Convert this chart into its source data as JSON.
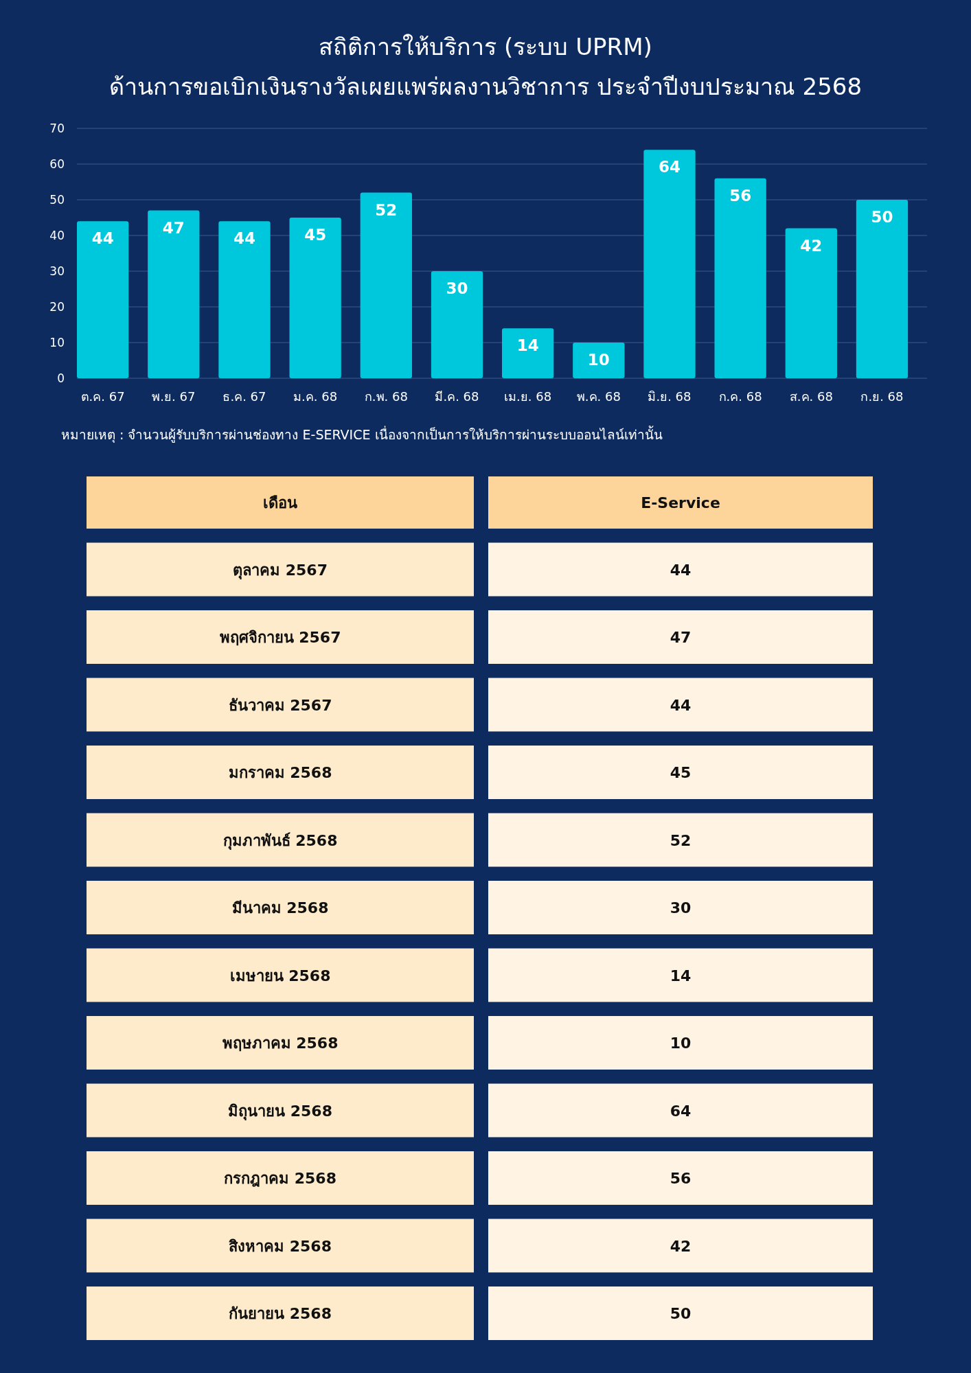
{
  "chart_data": [
    {
      "type": "bar",
      "title": "สถิติการให้บริการ (ระบบ UPRM)",
      "subtitle": "ด้านการขอเบิกเงินรางวัลเผยแพร่ผลงานวิชาการ ประจำปีงบประมาณ 2568",
      "categories": [
        "ต.ค. 67",
        "พ.ย. 67",
        "ธ.ค. 67",
        "ม.ค. 68",
        "ก.พ. 68",
        "มี.ค. 68",
        "เม.ย. 68",
        "พ.ค. 68",
        "มิ.ย. 68",
        "ก.ค. 68",
        "ส.ค. 68",
        "ก.ย. 68"
      ],
      "values": [
        44,
        47,
        44,
        45,
        52,
        30,
        14,
        10,
        64,
        56,
        42,
        50
      ],
      "color": "#00c8dc",
      "ylim": [
        0,
        70
      ],
      "yticks": [
        0,
        10,
        20,
        30,
        40,
        50,
        60,
        70
      ],
      "grid": "y",
      "data_labels": true,
      "annotations": [
        "หมายเหตุ : จำนวนผู้รับบริการผ่านช่องทาง E-SERVICE  เนื่องจากเป็นการให้บริการผ่านระบบออนไลน์เท่านั้น"
      ]
    },
    {
      "type": "other",
      "xlabel": "เดือน",
      "ylabel": "E-Service",
      "categories": [
        "ตุลาคม 2567",
        "พฤศจิกายน 2567",
        "ธันวาคม 2567",
        "มกราคม 2568",
        "กุมภาพันธ์ 2568",
        "มีนาคม 2568",
        "เมษายน 2568",
        "พฤษภาคม 2568",
        "มิถุนายน 2568",
        "กรกฎาคม 2568",
        "สิงหาคม 2568",
        "กันยายน 2568"
      ],
      "values": [
        44,
        47,
        44,
        45,
        52,
        30,
        14,
        10,
        64,
        56,
        42,
        50
      ],
      "data_labels": true
    }
  ]
}
